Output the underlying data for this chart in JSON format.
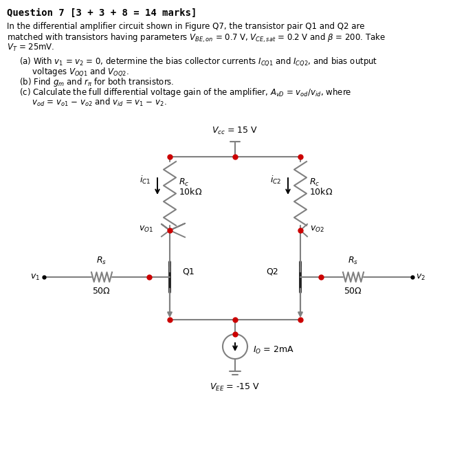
{
  "line_color": "#808080",
  "node_color": "#cc0000",
  "text_color": "#000000",
  "bg_color": "#ffffff",
  "title": "Question 7 [3 + 3 + 8 = 14 marks]",
  "line1": "In the differential amplifier circuit shown in Figure Q7, the transistor pair Q1 and Q2 are",
  "line2": "matched with transistors having parameters $V_{BE,on}$ = 0.7 V, $V_{CE,sat}$ = 0.2 V and $\\beta$ = 200. Take",
  "line3": "$V_T$ = 25mV.",
  "parta1": "(a) With $v_1$ = $v_2$ = 0, determine the bias collector currents $I_{CQ1}$ and $I_{CQ2}$, and bias output",
  "parta2": "     voltages $V_{OQ1}$ and $V_{OQ2}$.",
  "partb": "(b) Find $g_m$ and $r_{\\pi}$ for both transistors.",
  "partc1": "(c) Calculate the full differential voltage gain of the amplifier, $A_{vD}$ = $v_{od}/v_{id}$, where",
  "partc2": "     $v_{od}$ = $v_{o1}$ $-$ $v_{o2}$ and $v_{id}$ = $v_1$ $-$ $v_2$.",
  "vcc_label": "$V_{cc}$ = 15 V",
  "rc_label1": "$R_c$",
  "rc_label2": "10k$\\Omega$",
  "rs_label1": "$R_s$",
  "rs_label2": "50$\\Omega$",
  "ic1_label": "$i_{C1}$",
  "ic2_label": "$i_{C2}$",
  "vo1_label": "$v_{O1}$",
  "vo2_label": "$v_{O2}$",
  "q1_label": "Q1",
  "q2_label": "Q2",
  "v1_label": "$v_1$",
  "v2_label": "$v_2$",
  "io_label": "$I_O$ = 2mA",
  "vee_label": "$V_{EE}$ = -15 V",
  "title_fs": 10,
  "body_fs": 8.5,
  "circ_fs": 9
}
